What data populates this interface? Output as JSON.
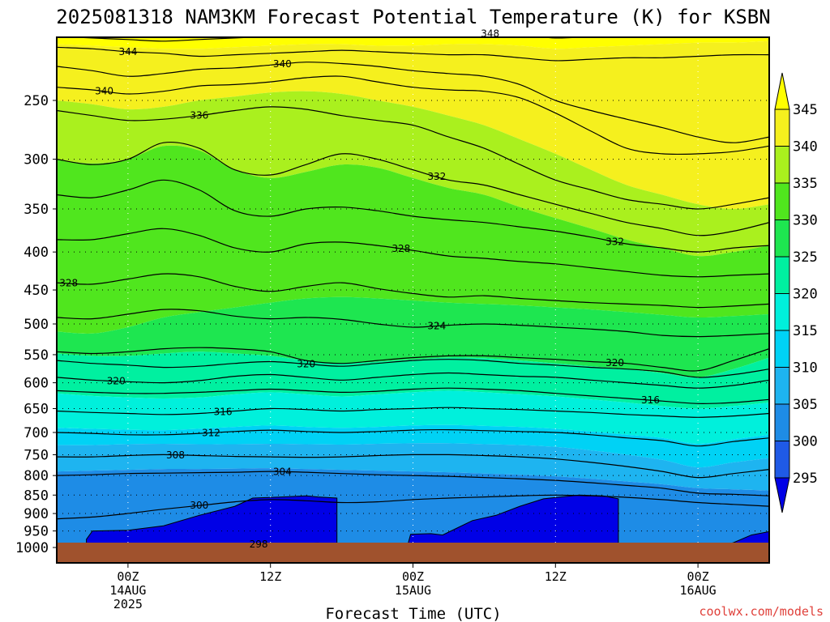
{
  "chart_data": {
    "type": "heatmap",
    "title": "2025081318 NAM3KM Forecast Potential Temperature (K) for KSBN",
    "xlabel": "Forecast Time (UTC)",
    "ylabel": "",
    "y_axis": {
      "scale": "log",
      "reversed": true,
      "range": [
        200,
        1000
      ],
      "unit": "hPa"
    },
    "y_ticks": [
      "250",
      "300",
      "350",
      "400",
      "450",
      "500",
      "550",
      "600",
      "650",
      "700",
      "750",
      "800",
      "850",
      "900",
      "950",
      "1000"
    ],
    "x_axis": {
      "range_hours_from_00Z_14AUG": [
        -6,
        54
      ]
    },
    "x_ticks": [
      {
        "hour": 0,
        "lines": [
          "00Z",
          "14AUG",
          "2025"
        ]
      },
      {
        "hour": 12,
        "lines": [
          "12Z"
        ]
      },
      {
        "hour": 24,
        "lines": [
          "00Z",
          "15AUG"
        ]
      },
      {
        "hour": 36,
        "lines": [
          "12Z"
        ]
      },
      {
        "hour": 48,
        "lines": [
          "00Z",
          "16AUG"
        ]
      }
    ],
    "grid": "dotted",
    "colorbar": {
      "levels": [
        "295",
        "300",
        "305",
        "310",
        "315",
        "320",
        "325",
        "330",
        "335",
        "340",
        "345"
      ],
      "colors": [
        "#0000e6",
        "#1f5ae6",
        "#1e8ce6",
        "#1eb4f0",
        "#00d2f5",
        "#00f0dc",
        "#00f0a0",
        "#1ee650",
        "#50e61e",
        "#aaf01e",
        "#f5f01e",
        "#ffff00"
      ],
      "placement": "right"
    },
    "ground_color": "#a0522d",
    "x_hours": [
      -6,
      -3,
      0,
      3,
      6,
      9,
      12,
      15,
      18,
      21,
      24,
      27,
      30,
      33,
      36,
      39,
      42,
      45,
      48,
      51,
      54
    ],
    "contours": [
      {
        "theta": 348,
        "label": "348",
        "label_hour": 30.5,
        "pressure": [
          205,
          206,
          207,
          208,
          207,
          206,
          205,
          204,
          204,
          205,
          204,
          203,
          203,
          204,
          206,
          205,
          204,
          203,
          202,
          202,
          201
        ]
      },
      {
        "theta": 344,
        "label": "344",
        "label_hour": 0,
        "pressure": [
          212,
          213,
          215,
          216,
          218,
          217,
          216,
          215,
          214,
          215,
          216,
          217,
          217,
          219,
          221,
          220,
          219,
          219,
          218,
          217,
          217
        ]
      },
      {
        "theta": 340,
        "label": "340",
        "label_hour": 13,
        "pressure": [
          225,
          228,
          232,
          230,
          227,
          226,
          224,
          222,
          223,
          225,
          228,
          230,
          232,
          238,
          250,
          258,
          265,
          272,
          280,
          285,
          280
        ]
      },
      {
        "theta": 340,
        "label": "340",
        "label_hour": -2,
        "pressure": [
          240,
          242,
          245,
          243,
          239,
          238,
          236,
          233,
          232,
          236,
          240,
          242,
          243,
          248,
          260,
          275,
          290,
          295,
          295,
          293,
          288
        ]
      },
      {
        "theta": 336,
        "label": "336",
        "label_hour": 6,
        "pressure": [
          258,
          262,
          266,
          265,
          262,
          258,
          255,
          257,
          262,
          266,
          270,
          280,
          290,
          305,
          320,
          330,
          340,
          345,
          350,
          345,
          338
        ]
      },
      {
        "theta": 332,
        "label": "332",
        "label_hour": 26,
        "pressure": [
          300,
          305,
          300,
          285,
          290,
          310,
          315,
          305,
          295,
          300,
          310,
          320,
          325,
          335,
          345,
          355,
          365,
          372,
          380,
          375,
          365
        ]
      },
      {
        "theta": 332,
        "label": "332",
        "label_hour": 41,
        "pressure": [
          335,
          338,
          330,
          320,
          330,
          352,
          358,
          350,
          348,
          352,
          358,
          362,
          365,
          370,
          375,
          382,
          390,
          395,
          400,
          395,
          392
        ]
      },
      {
        "theta": 328,
        "label": "328",
        "label_hour": 23,
        "pressure": [
          385,
          385,
          378,
          372,
          380,
          395,
          400,
          390,
          388,
          392,
          398,
          405,
          408,
          412,
          415,
          420,
          425,
          430,
          432,
          430,
          428
        ]
      },
      {
        "theta": 328,
        "label": "328",
        "label_hour": -5,
        "pressure": [
          440,
          442,
          435,
          428,
          432,
          445,
          452,
          445,
          440,
          448,
          455,
          460,
          458,
          462,
          465,
          468,
          470,
          472,
          475,
          473,
          470
        ]
      },
      {
        "theta": 324,
        "label": "324",
        "label_hour": 26,
        "pressure": [
          490,
          492,
          485,
          478,
          480,
          488,
          492,
          490,
          493,
          500,
          505,
          502,
          500,
          502,
          505,
          508,
          512,
          518,
          520,
          518,
          515
        ]
      },
      {
        "theta": 320,
        "label": "320",
        "label_hour": 41,
        "pressure": [
          545,
          548,
          545,
          540,
          538,
          540,
          545,
          560,
          565,
          560,
          555,
          552,
          552,
          555,
          558,
          562,
          565,
          572,
          578,
          560,
          540
        ]
      },
      {
        "theta": 320,
        "label": "320",
        "label_hour": -1,
        "pressure": [
          590,
          595,
          598,
          600,
          596,
          588,
          585,
          590,
          595,
          590,
          585,
          582,
          585,
          588,
          590,
          595,
          600,
          605,
          610,
          605,
          595
        ]
      },
      {
        "theta": 320,
        "label": "320",
        "label_hour": 15,
        "pressure": [
          560,
          565,
          568,
          572,
          570,
          565,
          562,
          566,
          570,
          565,
          560,
          558,
          560,
          565,
          568,
          572,
          575,
          580,
          590,
          585,
          575
        ]
      },
      {
        "theta": 316,
        "label": "316",
        "label_hour": 8,
        "pressure": [
          655,
          658,
          660,
          662,
          660,
          655,
          650,
          652,
          655,
          652,
          650,
          648,
          650,
          652,
          655,
          658,
          662,
          665,
          668,
          665,
          660
        ]
      },
      {
        "theta": 316,
        "label": "316",
        "label_hour": 44,
        "pressure": [
          615,
          618,
          620,
          620,
          618,
          615,
          612,
          615,
          618,
          616,
          612,
          610,
          612,
          615,
          620,
          625,
          630,
          635,
          640,
          638,
          632
        ]
      },
      {
        "theta": 312,
        "label": "312",
        "label_hour": 7,
        "pressure": [
          700,
          702,
          705,
          705,
          702,
          698,
          695,
          698,
          700,
          698,
          695,
          694,
          696,
          698,
          700,
          705,
          712,
          718,
          730,
          720,
          712
        ]
      },
      {
        "theta": 308,
        "label": "308",
        "label_hour": 4,
        "pressure": [
          755,
          755,
          752,
          750,
          752,
          754,
          755,
          756,
          755,
          752,
          750,
          750,
          752,
          755,
          760,
          768,
          778,
          790,
          805,
          795,
          785
        ]
      },
      {
        "theta": 304,
        "label": "304",
        "label_hour": 13,
        "pressure": [
          800,
          798,
          795,
          794,
          793,
          792,
          790,
          792,
          795,
          798,
          800,
          802,
          805,
          808,
          812,
          818,
          825,
          832,
          845,
          848,
          852
        ]
      },
      {
        "theta": 300,
        "label": "300",
        "label_hour": 6,
        "pressure": [
          915,
          910,
          900,
          888,
          878,
          868,
          862,
          865,
          870,
          868,
          862,
          858,
          855,
          852,
          850,
          852,
          856,
          862,
          870,
          875,
          880
        ]
      }
    ],
    "contour_298_label": "298",
    "contour_298_label_hour": 11
  },
  "credit": "coolwx.com/models"
}
